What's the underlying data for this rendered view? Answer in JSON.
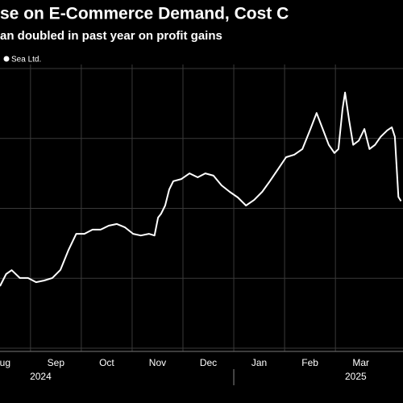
{
  "chart_data": {
    "type": "line",
    "title": "se on E-Commerce Demand, Cost C",
    "subtitle": "an doubled in past year on profit gains",
    "x": [
      0.4,
      0.52,
      0.63,
      0.79,
      0.95,
      1.11,
      1.27,
      1.43,
      1.59,
      1.75,
      1.9,
      2.06,
      2.22,
      2.38,
      2.54,
      2.7,
      2.86,
      3.02,
      3.17,
      3.33,
      3.44,
      3.51,
      3.57,
      3.65,
      3.73,
      3.81,
      3.97,
      4.13,
      4.29,
      4.44,
      4.6,
      4.76,
      4.92,
      5.08,
      5.24,
      5.4,
      5.56,
      5.71,
      5.87,
      6.03,
      6.19,
      6.35,
      6.51,
      6.63,
      6.75,
      6.87,
      6.98,
      7.06,
      7.14,
      7.19,
      7.27,
      7.35,
      7.46,
      7.57,
      7.67,
      7.78,
      7.89,
      8.02,
      8.11,
      8.17,
      8.24,
      8.29
    ],
    "series": [
      {
        "name": "Sea Ltd.",
        "color": "#ffffff",
        "values": [
          72.2,
          76.5,
          77.9,
          75.1,
          75.1,
          73.6,
          74.2,
          75.1,
          78.0,
          85.2,
          90.9,
          90.9,
          92.4,
          92.4,
          93.8,
          94.4,
          93.2,
          90.9,
          90.3,
          90.9,
          90.3,
          96.7,
          98.1,
          101.0,
          106.8,
          109.7,
          110.5,
          112.5,
          111.1,
          112.5,
          111.7,
          108.2,
          105.9,
          103.9,
          101.0,
          103.0,
          105.9,
          109.7,
          114.0,
          118.3,
          119.2,
          121.2,
          128.4,
          134.1,
          128.4,
          122.7,
          119.8,
          121.2,
          135.6,
          141.4,
          131.4,
          122.7,
          124.2,
          128.4,
          121.2,
          122.7,
          125.6,
          127.9,
          129.0,
          125.6,
          104.1,
          102.6
        ]
      }
    ],
    "xlim": [
      0.4,
      8.33
    ],
    "xticks": [
      {
        "value": 0,
        "label": "ug"
      },
      {
        "value": 1,
        "label": "Sep"
      },
      {
        "value": 2,
        "label": "Oct"
      },
      {
        "value": 3,
        "label": "Nov"
      },
      {
        "value": 4,
        "label": "Dec"
      },
      {
        "value": 5,
        "label": "Jan"
      },
      {
        "value": 6,
        "label": "Feb"
      },
      {
        "value": 7,
        "label": "Mar"
      }
    ],
    "year_labels": [
      {
        "value": 1.2,
        "label": "2024"
      },
      {
        "value": 7.4,
        "label": "2025"
      }
    ],
    "year_breaks": [
      5
    ],
    "ylim": [
      50,
      150
    ],
    "y_gridlines": [
      50,
      75,
      100,
      125,
      150
    ],
    "grid": true
  }
}
